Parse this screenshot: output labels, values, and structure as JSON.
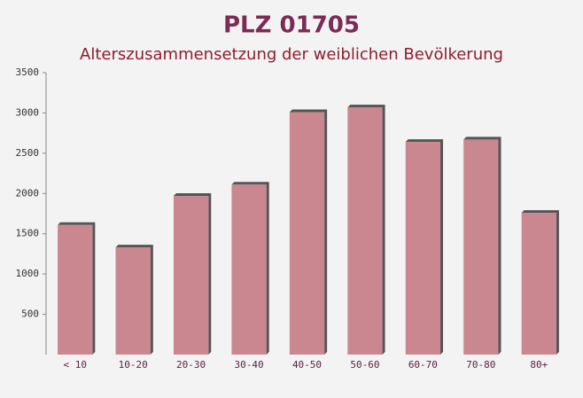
{
  "chart_data": {
    "type": "bar",
    "title": "PLZ 01705",
    "subtitle": "Alterszusammensetzung der weiblichen Bevölkerung",
    "categories": [
      "< 10",
      "10-20",
      "20-30",
      "30-40",
      "40-50",
      "50-60",
      "60-70",
      "70-80",
      "80+"
    ],
    "values": [
      1610,
      1330,
      1970,
      2110,
      3010,
      3070,
      2640,
      2670,
      1760
    ],
    "color": "#c2737c",
    "ylim": [
      0,
      3500
    ],
    "yticks": [
      500,
      1000,
      1500,
      2000,
      2500,
      3000,
      3500
    ],
    "grid": false
  }
}
